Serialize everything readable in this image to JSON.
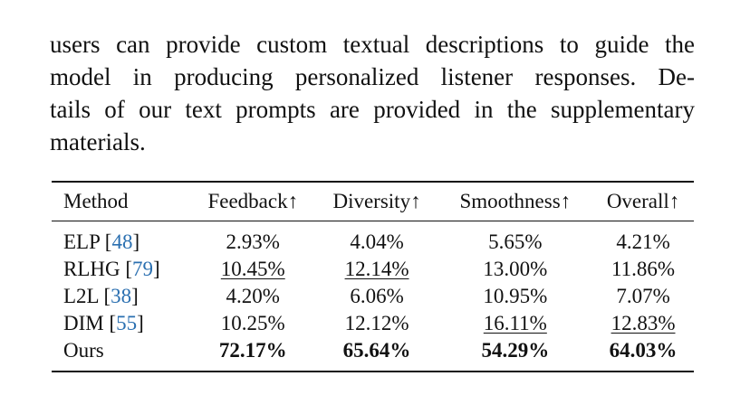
{
  "paragraph": {
    "lines": [
      "users can provide custom textual descriptions to guide the",
      "model in producing personalized listener responses. De-",
      "tails of our text prompts are provided in the supplementary",
      "materials."
    ]
  },
  "table": {
    "headers": [
      "Method",
      "Feedback↑",
      "Diversity↑",
      "Smoothness↑",
      "Overall↑"
    ],
    "rows": [
      {
        "method": "ELP",
        "ref": "48",
        "feedback": "2.93%",
        "diversity": "4.04%",
        "smoothness": "5.65%",
        "overall": "4.21%"
      },
      {
        "method": "RLHG",
        "ref": "79",
        "feedback": "10.45%",
        "diversity": "12.14%",
        "smoothness": "13.00%",
        "overall": "11.86%"
      },
      {
        "method": "L2L",
        "ref": "38",
        "feedback": "4.20%",
        "diversity": "6.06%",
        "smoothness": "10.95%",
        "overall": "7.07%"
      },
      {
        "method": "DIM",
        "ref": "55",
        "feedback": "10.25%",
        "diversity": "12.12%",
        "smoothness": "16.11%",
        "overall": "12.83%"
      },
      {
        "method": "Ours",
        "feedback": "72.17%",
        "diversity": "65.64%",
        "smoothness": "54.29%",
        "overall": "64.03%"
      }
    ],
    "underlined": [
      "1.feedback",
      "1.diversity",
      "3.smoothness",
      "3.overall"
    ],
    "bold": [
      "4.feedback",
      "4.diversity",
      "4.smoothness",
      "4.overall"
    ]
  }
}
